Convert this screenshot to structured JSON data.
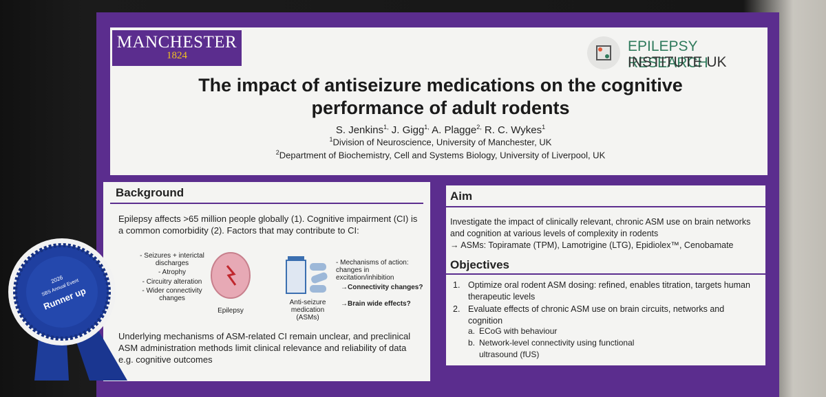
{
  "logos": {
    "university": {
      "name": "MANCHESTER",
      "year": "1824"
    },
    "institute": {
      "line1": "EPILEPSY RESEARCH",
      "line2": "INSTITUTE UK"
    }
  },
  "header": {
    "title_lines": [
      "The impact of antiseizure medications on the cognitive",
      "performance of adult rodents"
    ],
    "authors": [
      {
        "name": "S. Jenkins",
        "sup": "1,"
      },
      {
        "name": "J. Gigg",
        "sup": "1,"
      },
      {
        "name": "A. Plagge",
        "sup": "2,"
      },
      {
        "name": "R. C. Wykes",
        "sup": "1"
      }
    ],
    "affiliations": [
      {
        "sup": "1",
        "text": "Division of Neuroscience, University of Manchester, UK"
      },
      {
        "sup": "2",
        "text": "Department of Biochemistry, Cell and Systems Biology, University of Liverpool, UK"
      }
    ]
  },
  "background": {
    "heading": "Background",
    "intro": "Epilepsy affects >65 million people globally (1). Cognitive impairment (CI) is a common comorbidity (2). Factors that may contribute to CI:",
    "figure": {
      "factors": [
        "- Seizures + interictal discharges",
        "- Atrophy",
        "- Circuitry alteration",
        "- Wider connectivity changes"
      ],
      "brain_label": "Epilepsy",
      "drug_label": "Anti-seizure medication (ASMs)",
      "mechanisms": "- Mechanisms of action: changes in excitation/inhibition",
      "questions": [
        "→Connectivity changes?",
        "→Brain wide effects?"
      ]
    },
    "conclusion": "Underlying mechanisms of ASM-related CI remain unclear, and preclinical ASM administration methods limit clinical relevance and reliability of data e.g. cognitive outcomes"
  },
  "aim": {
    "heading": "Aim",
    "text": "Investigate the impact of clinically relevant, chronic ASM use on brain networks and cognition at various levels of complexity in rodents",
    "asms": "→ ASMs: Topiramate (TPM), Lamotrigine (LTG), Epidiolex™, Cenobamate"
  },
  "objectives": {
    "heading": "Objectives",
    "items": [
      {
        "number": "1.",
        "text": "Optimize oral rodent ASM dosing: refined, enables titration, targets human therapeutic levels"
      },
      {
        "number": "2.",
        "text": "Evaluate effects of chronic ASM use on brain circuits, networks and cognition"
      }
    ],
    "subitems": [
      {
        "letter": "a.",
        "text": "ECoG with behaviour"
      },
      {
        "letter": "b.",
        "text": "Network-level connectivity using functional ultrasound (fUS)"
      }
    ]
  },
  "ribbon": {
    "year": "2026",
    "event": "SBS Annual Event",
    "award": "Runner up"
  }
}
